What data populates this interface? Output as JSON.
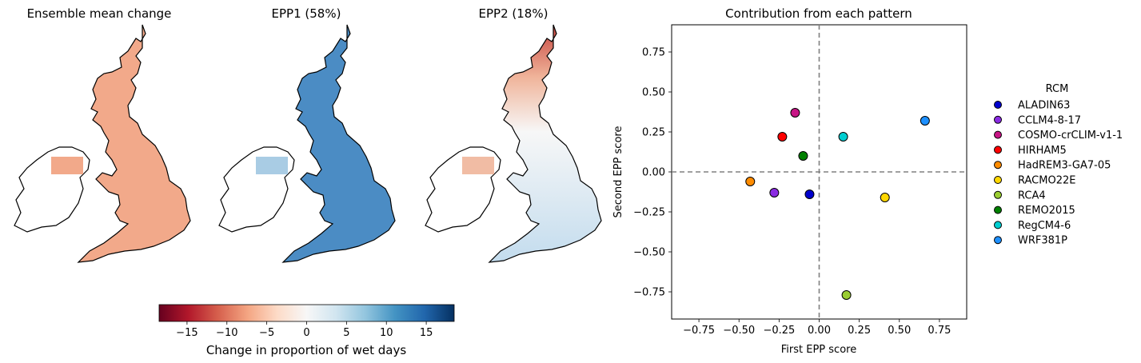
{
  "maps": [
    {
      "title": "Ensemble mean change",
      "fill": "#f2a98a"
    },
    {
      "title": "EPP1 (58%)",
      "fill": "#4b8cc4"
    },
    {
      "title": "EPP2 (18%)",
      "fill": "#dbe9f3"
    }
  ],
  "colorbar": {
    "label": "Change in proportion of wet days",
    "ticks": [
      "−15",
      "−10",
      "−5",
      "0",
      "5",
      "10",
      "15"
    ],
    "tick_values": [
      -15,
      -10,
      -5,
      0,
      5,
      10,
      15
    ],
    "range": [
      -18.5,
      18.5
    ],
    "colormap": [
      "#67001f",
      "#b2182b",
      "#d6604d",
      "#f4a582",
      "#fddbc7",
      "#f7f7f7",
      "#d1e5f0",
      "#92c5de",
      "#4393c3",
      "#2166ac",
      "#053061"
    ]
  },
  "chart_data": {
    "type": "scatter",
    "title": "Contribution from each pattern",
    "xlabel": "First EPP score",
    "ylabel": "Second EPP score",
    "xlim": [
      -0.92,
      0.92
    ],
    "ylim": [
      -0.92,
      0.92
    ],
    "xticks": [
      -0.75,
      -0.5,
      -0.25,
      0.0,
      0.25,
      0.5,
      0.75
    ],
    "yticks": [
      -0.75,
      -0.5,
      -0.25,
      0.0,
      0.25,
      0.5,
      0.75
    ],
    "xtick_labels": [
      "−0.75",
      "−0.50",
      "−0.25",
      "0.00",
      "0.25",
      "0.50",
      "0.75"
    ],
    "ytick_labels": [
      "−0.75",
      "−0.50",
      "−0.25",
      "0.00",
      "0.25",
      "0.50",
      "0.75"
    ],
    "reference_lines": {
      "x": 0,
      "y": 0,
      "style": "dashed",
      "color": "#808080"
    },
    "legend": {
      "title": "RCM",
      "placement": "right"
    },
    "series": [
      {
        "name": "ALADIN63",
        "color": "#0000cd",
        "x": -0.06,
        "y": -0.14
      },
      {
        "name": "CCLM4-8-17",
        "color": "#8a2be2",
        "x": -0.28,
        "y": -0.13
      },
      {
        "name": "COSMO-crCLIM-v1-1",
        "color": "#c71585",
        "x": -0.15,
        "y": 0.37
      },
      {
        "name": "HIRHAM5",
        "color": "#ff0000",
        "x": -0.23,
        "y": 0.22
      },
      {
        "name": "HadREM3-GA7-05",
        "color": "#ff8c00",
        "x": -0.43,
        "y": -0.06
      },
      {
        "name": "RACMO22E",
        "color": "#ffd700",
        "x": 0.41,
        "y": -0.16
      },
      {
        "name": "RCA4",
        "color": "#9acd32",
        "x": 0.17,
        "y": -0.77
      },
      {
        "name": "REMO2015",
        "color": "#008000",
        "x": -0.1,
        "y": 0.1
      },
      {
        "name": "RegCM4-6",
        "color": "#00ced1",
        "x": 0.15,
        "y": 0.22
      },
      {
        "name": "WRF381P",
        "color": "#1e90ff",
        "x": 0.66,
        "y": 0.32
      }
    ]
  }
}
